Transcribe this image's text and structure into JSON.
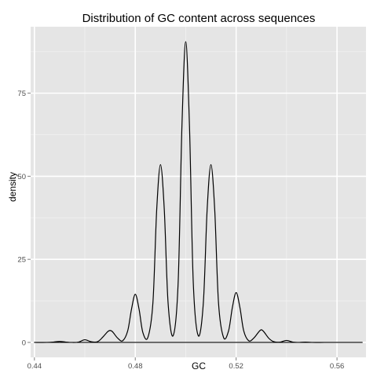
{
  "chart_data": {
    "type": "line",
    "title": "Distribution of GC content across sequences",
    "xlabel": "GC",
    "ylabel": "density",
    "xlim": [
      0.4385,
      0.5715
    ],
    "ylim": [
      -4.5,
      95
    ],
    "x_ticks": [
      0.44,
      0.48,
      0.52,
      0.56
    ],
    "x_tick_labels": [
      "0.44",
      "0.48",
      "0.52",
      "0.56"
    ],
    "y_ticks": [
      0,
      25,
      50,
      75
    ],
    "y_tick_labels": [
      "0",
      "25",
      "50",
      "75"
    ],
    "grid": true,
    "legend": "none",
    "colors": {
      "panel": "#e5e5e5",
      "grid_major": "#ffffff",
      "grid_minor": "#f2f2f2",
      "line": "#000000",
      "tick_label": "#4d4d4d"
    },
    "series": [
      {
        "x": [
          0.44,
          0.445,
          0.4475,
          0.45,
          0.4525,
          0.455,
          0.4575,
          0.46,
          0.4625,
          0.465,
          0.467,
          0.469,
          0.47,
          0.471,
          0.473,
          0.475,
          0.477,
          0.4785,
          0.48,
          0.4815,
          0.483,
          0.485,
          0.487,
          0.4885,
          0.49,
          0.4915,
          0.493,
          0.495,
          0.497,
          0.4985,
          0.5,
          0.5015,
          0.503,
          0.505,
          0.507,
          0.5085,
          0.51,
          0.5115,
          0.513,
          0.515,
          0.517,
          0.5185,
          0.52,
          0.5215,
          0.523,
          0.525,
          0.527,
          0.529,
          0.53,
          0.531,
          0.533,
          0.535,
          0.5375,
          0.54,
          0.5425,
          0.545,
          0.5475,
          0.55,
          0.555,
          0.56,
          0.565,
          0.57
        ],
        "y": [
          0.0,
          0.0,
          0.1,
          0.3,
          0.1,
          0.0,
          0.1,
          0.8,
          0.2,
          0.2,
          1.5,
          3.2,
          3.6,
          3.2,
          1.3,
          0.5,
          3.5,
          10.0,
          14.5,
          10.0,
          3.0,
          1.5,
          12.0,
          40.0,
          53.5,
          40.0,
          12.0,
          2.0,
          18.0,
          65.0,
          90.5,
          65.0,
          18.0,
          2.0,
          12.0,
          40.0,
          53.5,
          40.0,
          12.0,
          1.5,
          3.5,
          10.5,
          15.0,
          10.5,
          3.5,
          0.5,
          1.3,
          3.2,
          3.8,
          3.2,
          1.2,
          0.2,
          0.1,
          0.6,
          0.1,
          0.0,
          0.1,
          0.0,
          0.0,
          0.0,
          0.0,
          0.0
        ]
      }
    ]
  }
}
